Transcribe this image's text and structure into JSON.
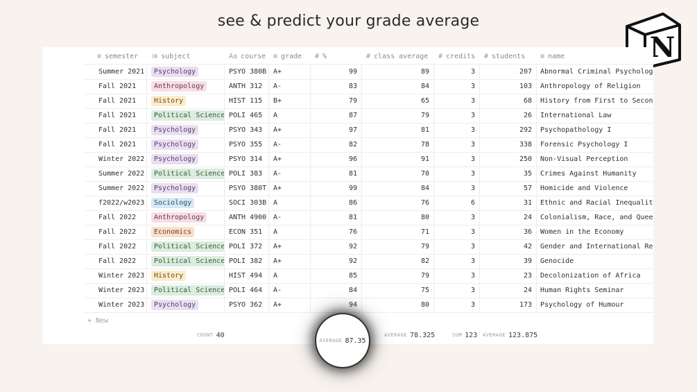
{
  "headline": "see & predict your grade average",
  "logo": {
    "icon": "notion-logo-icon",
    "letter": "N"
  },
  "columns": [
    {
      "icon": "≡",
      "label": "semester"
    },
    {
      "icon": "⁝≡",
      "label": "subject"
    },
    {
      "icon": "Aa",
      "label": "course"
    },
    {
      "icon": "≡",
      "label": "grade"
    },
    {
      "icon": "#",
      "label": "%"
    },
    {
      "icon": "#",
      "label": "class average"
    },
    {
      "icon": "#",
      "label": "credits"
    },
    {
      "icon": "#",
      "label": "students"
    },
    {
      "icon": "≡",
      "label": "name"
    }
  ],
  "subject_colors": {
    "Psychology": {
      "bg": "#eadff0",
      "fg": "#5a3a6e"
    },
    "Anthropology": {
      "bg": "#f6dfe6",
      "fg": "#6e3548"
    },
    "History": {
      "bg": "#fbeccb",
      "fg": "#6b4e16"
    },
    "Political Science": {
      "bg": "#dcecdf",
      "fg": "#2f5a38"
    },
    "Sociology": {
      "bg": "#d8e8f4",
      "fg": "#28506e"
    },
    "Economics": {
      "bg": "#f9e0cc",
      "fg": "#6e4125"
    }
  },
  "rows": [
    {
      "semester": "Summer 2021",
      "subject": "Psychology",
      "course": "PSYO 380B",
      "grade": "A+",
      "pct": "99",
      "class_avg": "89",
      "credits": "3",
      "students": "207",
      "name": "Abnormal Criminal Psychology"
    },
    {
      "semester": "Fall 2021",
      "subject": "Anthropology",
      "course": "ANTH 312",
      "grade": "A-",
      "pct": "83",
      "class_avg": "84",
      "credits": "3",
      "students": "103",
      "name": "Anthropology of Religion"
    },
    {
      "semester": "Fall 2021",
      "subject": "History",
      "course": "HIST 115",
      "grade": "B+",
      "pct": "79",
      "class_avg": "65",
      "credits": "3",
      "students": "68",
      "name": "History from First to Second"
    },
    {
      "semester": "Fall 2021",
      "subject": "Political Science",
      "course": "POLI 465",
      "grade": "A",
      "pct": "87",
      "class_avg": "79",
      "credits": "3",
      "students": "26",
      "name": "International Law"
    },
    {
      "semester": "Fall 2021",
      "subject": "Psychology",
      "course": "PSYO 343",
      "grade": "A+",
      "pct": "97",
      "class_avg": "81",
      "credits": "3",
      "students": "292",
      "name": "Psychopathology I"
    },
    {
      "semester": "Fall 2021",
      "subject": "Psychology",
      "course": "PSYO 355",
      "grade": "A-",
      "pct": "82",
      "class_avg": "78",
      "credits": "3",
      "students": "338",
      "name": "Forensic Psychology I"
    },
    {
      "semester": "Winter 2022",
      "subject": "Psychology",
      "course": "PSYO 314",
      "grade": "A+",
      "pct": "96",
      "class_avg": "91",
      "credits": "3",
      "students": "250",
      "name": "Non-Visual Perception"
    },
    {
      "semester": "Summer 2022",
      "subject": "Political Science",
      "course": "POLI 383",
      "grade": "A-",
      "pct": "81",
      "class_avg": "70",
      "credits": "3",
      "students": "35",
      "name": "Crimes Against Humanity"
    },
    {
      "semester": "Summer 2022",
      "subject": "Psychology",
      "course": "PSYO 380T",
      "grade": "A+",
      "pct": "99",
      "class_avg": "84",
      "credits": "3",
      "students": "57",
      "name": "Homicide and Violence"
    },
    {
      "semester": "f2022/w2023",
      "subject": "Sociology",
      "course": "SOCI 303B",
      "grade": "A",
      "pct": "86",
      "class_avg": "76",
      "credits": "6",
      "students": "31",
      "name": "Ethnic and Racial Inequality"
    },
    {
      "semester": "Fall 2022",
      "subject": "Anthropology",
      "course": "ANTH 4900",
      "grade": "A-",
      "pct": "81",
      "class_avg": "80",
      "credits": "3",
      "students": "24",
      "name": "Colonialism, Race, and Queern"
    },
    {
      "semester": "Fall 2022",
      "subject": "Economics",
      "course": "ECON 351",
      "grade": "A",
      "pct": "76",
      "class_avg": "71",
      "credits": "3",
      "students": "36",
      "name": "Women in the Economy"
    },
    {
      "semester": "Fall 2022",
      "subject": "Political Science",
      "course": "POLI 372",
      "grade": "A+",
      "pct": "92",
      "class_avg": "79",
      "credits": "3",
      "students": "42",
      "name": "Gender and International Rela"
    },
    {
      "semester": "Fall 2022",
      "subject": "Political Science",
      "course": "POLI 382",
      "grade": "A+",
      "pct": "92",
      "class_avg": "82",
      "credits": "3",
      "students": "39",
      "name": "Genocide"
    },
    {
      "semester": "Winter 2023",
      "subject": "History",
      "course": "HIST 494",
      "grade": "A",
      "pct": "85",
      "class_avg": "79",
      "credits": "3",
      "students": "23",
      "name": "Decolonization of Africa"
    },
    {
      "semester": "Winter 2023",
      "subject": "Political Science",
      "course": "POLI 464",
      "grade": "A-",
      "pct": "84",
      "class_avg": "75",
      "credits": "3",
      "students": "24",
      "name": "Human Rights Seminar"
    },
    {
      "semester": "Winter 2023",
      "subject": "Psychology",
      "course": "PSYO 362",
      "grade": "A+",
      "pct": "94",
      "class_avg": "80",
      "credits": "3",
      "students": "173",
      "name": "Psychology of Humour"
    }
  ],
  "new_row": "+ New",
  "footer": {
    "count_label": "COUNT",
    "count_value": "40",
    "pct_label": "AVERAGE",
    "pct_value": "87.35",
    "class_avg_label": "AVERAGE",
    "class_avg_value": "78.325",
    "credits_label": "SUM",
    "credits_value": "123",
    "students_label": "AVERAGE",
    "students_value": "123.875"
  }
}
